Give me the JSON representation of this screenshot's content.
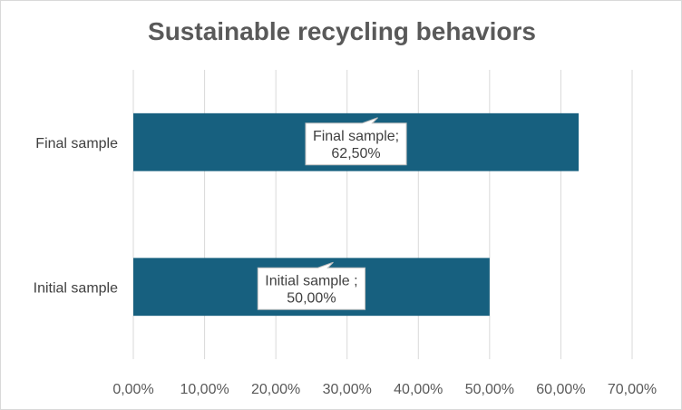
{
  "chart_data": {
    "type": "bar",
    "orientation": "horizontal",
    "title": "Sustainable recycling behaviors",
    "categories": [
      "Initial sample",
      "Final sample"
    ],
    "values": [
      50.0,
      62.5
    ],
    "data_labels": [
      {
        "category": "Initial sample ;",
        "value": "50,00%"
      },
      {
        "category": "Final sample;",
        "value": "62,50%"
      }
    ],
    "x_ticks": [
      "0,00%",
      "10,00%",
      "20,00%",
      "30,00%",
      "40,00%",
      "50,00%",
      "60,00%",
      "70,00%"
    ],
    "xlim": [
      0,
      70
    ],
    "grid": true,
    "legend": "none",
    "colors": {
      "bar": "#17607F",
      "grid": "#d9d9d9",
      "label_border": "#bfbfbf"
    }
  }
}
